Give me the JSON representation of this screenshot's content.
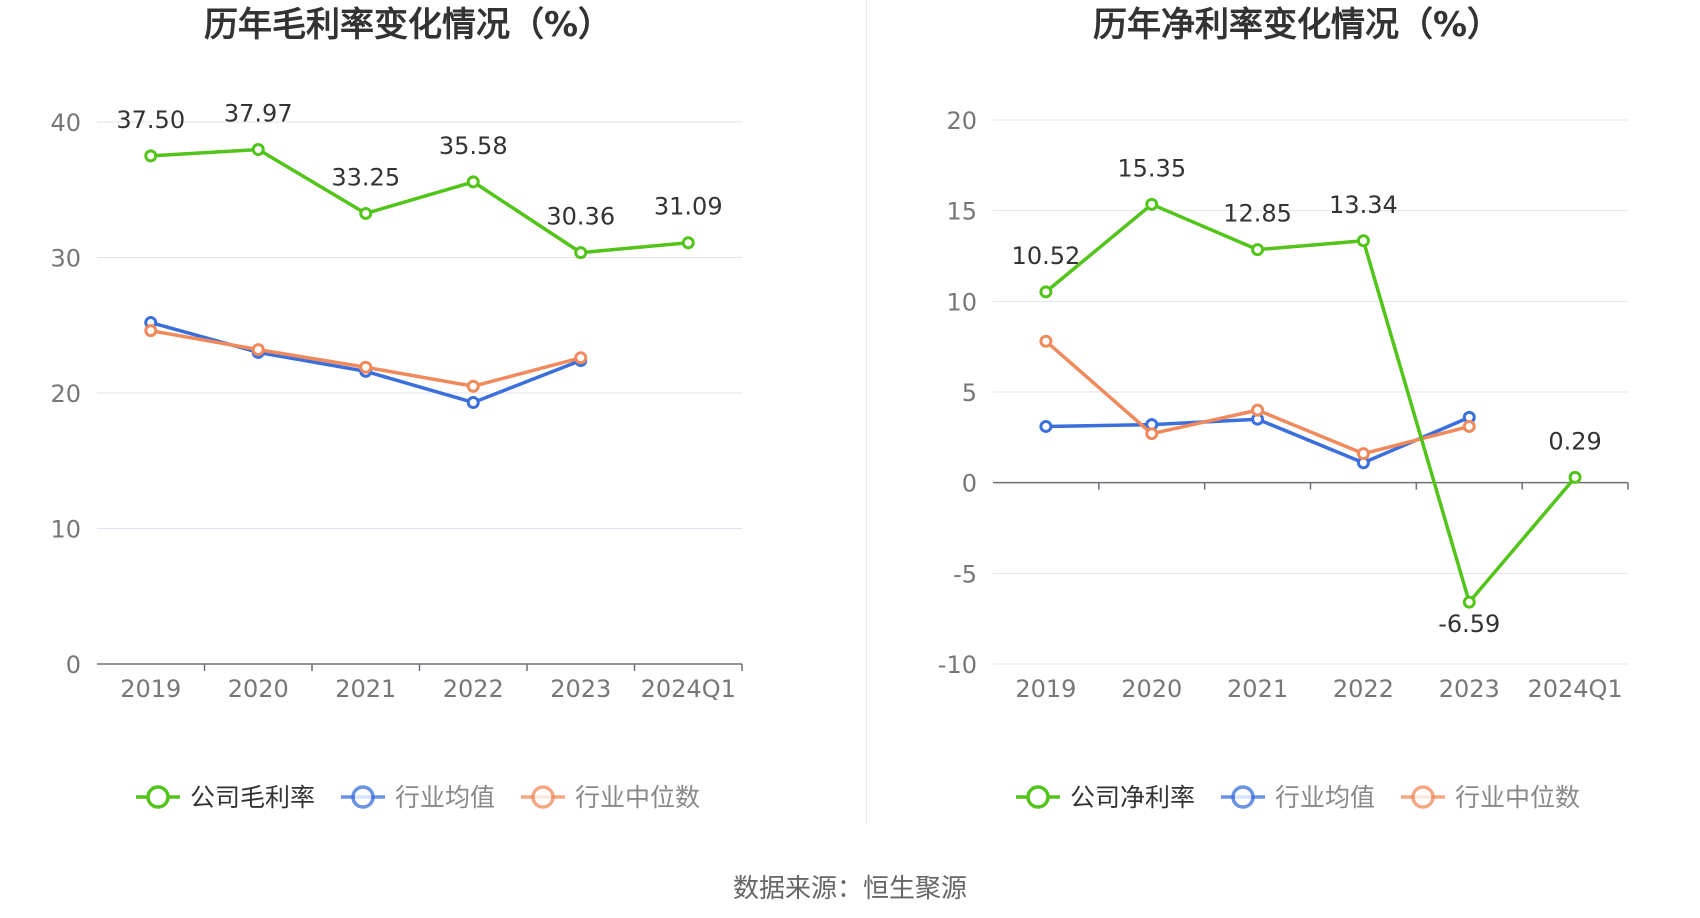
{
  "source_label": "数据来源：恒生聚源",
  "chart_data": [
    {
      "type": "line",
      "title": "历年毛利率变化情况（%）",
      "categories": [
        "2019",
        "2020",
        "2021",
        "2022",
        "2023",
        "2024Q1"
      ],
      "ylim": [
        0,
        40
      ],
      "yticks": [
        0,
        10,
        20,
        30,
        40
      ],
      "series": [
        {
          "name": "公司毛利率",
          "color": "#52c41a",
          "values": [
            37.5,
            37.97,
            33.25,
            35.58,
            30.36,
            31.09
          ],
          "show_labels": true
        },
        {
          "name": "行业均值",
          "color": "#3a6fdc",
          "values": [
            25.2,
            23.0,
            21.6,
            19.3,
            22.4,
            null
          ],
          "show_labels": false
        },
        {
          "name": "行业中位数",
          "color": "#f08a5d",
          "values": [
            24.6,
            23.2,
            21.9,
            20.5,
            22.6,
            null
          ],
          "show_labels": false
        }
      ]
    },
    {
      "type": "line",
      "title": "历年净利率变化情况（%）",
      "categories": [
        "2019",
        "2020",
        "2021",
        "2022",
        "2023",
        "2024Q1"
      ],
      "ylim": [
        -10,
        20
      ],
      "yticks": [
        -10,
        -5,
        0,
        5,
        10,
        15,
        20
      ],
      "series": [
        {
          "name": "公司净利率",
          "color": "#52c41a",
          "values": [
            10.52,
            15.35,
            12.85,
            13.34,
            -6.59,
            0.29
          ],
          "show_labels": true
        },
        {
          "name": "行业均值",
          "color": "#3a6fdc",
          "values": [
            3.1,
            3.2,
            3.5,
            1.1,
            3.6,
            null
          ],
          "show_labels": false
        },
        {
          "name": "行业中位数",
          "color": "#f08a5d",
          "values": [
            7.8,
            2.7,
            4.0,
            1.6,
            3.1,
            null
          ],
          "show_labels": false
        }
      ]
    }
  ]
}
